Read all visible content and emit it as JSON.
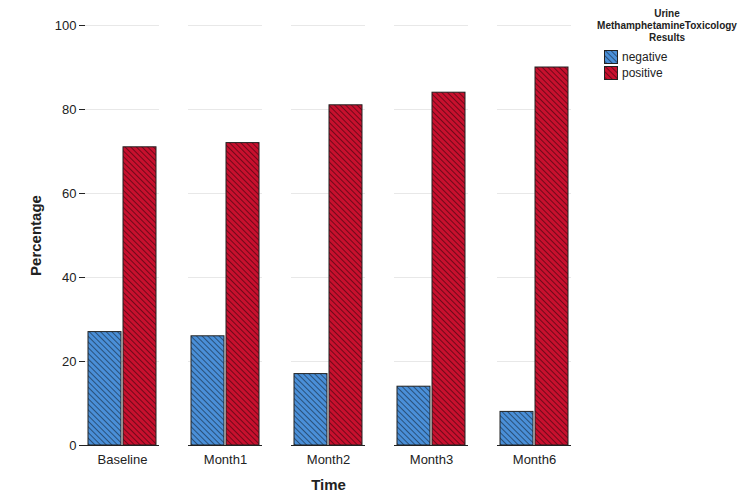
{
  "chart_data": {
    "type": "bar",
    "x_label": "Time",
    "y_label": "Percentage",
    "legend_title": "Urine MethamphetamineToxicology Results",
    "categories": [
      "Baseline",
      "Month1",
      "Month2",
      "Month3",
      "Month6"
    ],
    "series": [
      {
        "name": "negative",
        "color": "#4a8fd8",
        "values": [
          27,
          26,
          17,
          14,
          8
        ]
      },
      {
        "name": "positive",
        "color": "#c8102e",
        "values": [
          71,
          72,
          81,
          84,
          90
        ]
      }
    ],
    "ylim": [
      0,
      100
    ],
    "yticks": [
      0,
      20,
      40,
      60,
      80,
      100
    ],
    "grid": true,
    "legend": "top-right"
  }
}
